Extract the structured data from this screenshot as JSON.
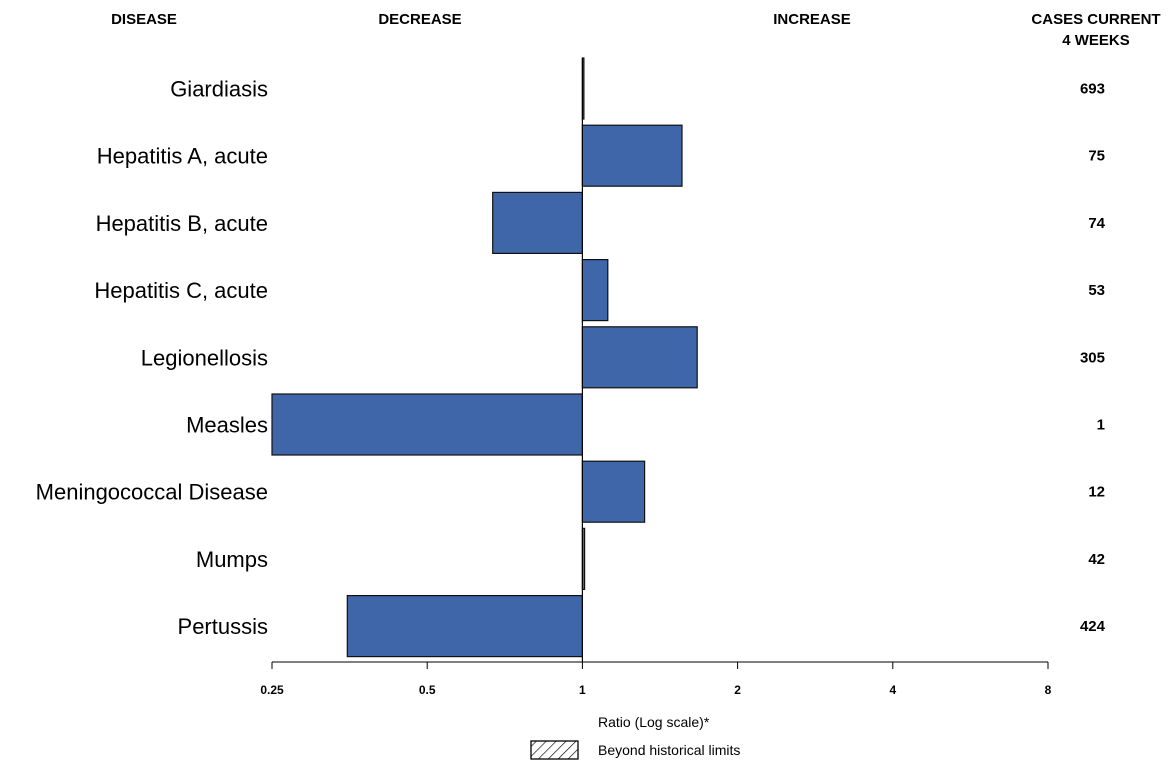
{
  "headers": {
    "disease": "DISEASE",
    "decrease": "DECREASE",
    "increase": "INCREASE",
    "cases_line1": "CASES CURRENT",
    "cases_line2": "4 WEEKS"
  },
  "legend": {
    "label": "Beyond historical limits"
  },
  "colors": {
    "bar_fill": "#3f66a8",
    "bar_stroke": "#111111"
  },
  "chart_data": {
    "type": "bar",
    "orientation": "horizontal",
    "x_scale": "log2",
    "xlabel": "Ratio (Log scale)*",
    "xlim": [
      0.25,
      8
    ],
    "xticks": [
      0.25,
      0.5,
      1,
      2,
      4,
      8
    ],
    "xtick_labels": [
      "0.25",
      "0.5",
      "1",
      "2",
      "4",
      "8"
    ],
    "baseline": 1,
    "categories": [
      "Giardiasis",
      "Hepatitis A, acute",
      "Hepatitis B, acute",
      "Hepatitis C, acute",
      "Legionellosis",
      "Measles",
      "Meningococcal Disease",
      "Mumps",
      "Pertussis"
    ],
    "values": [
      1.0,
      1.56,
      0.67,
      1.12,
      1.67,
      0.25,
      1.32,
      1.01,
      0.35
    ],
    "cases_current_4_weeks": [
      "693",
      "75",
      "74",
      "53",
      "305",
      "1",
      "12",
      "42",
      "424"
    ]
  }
}
